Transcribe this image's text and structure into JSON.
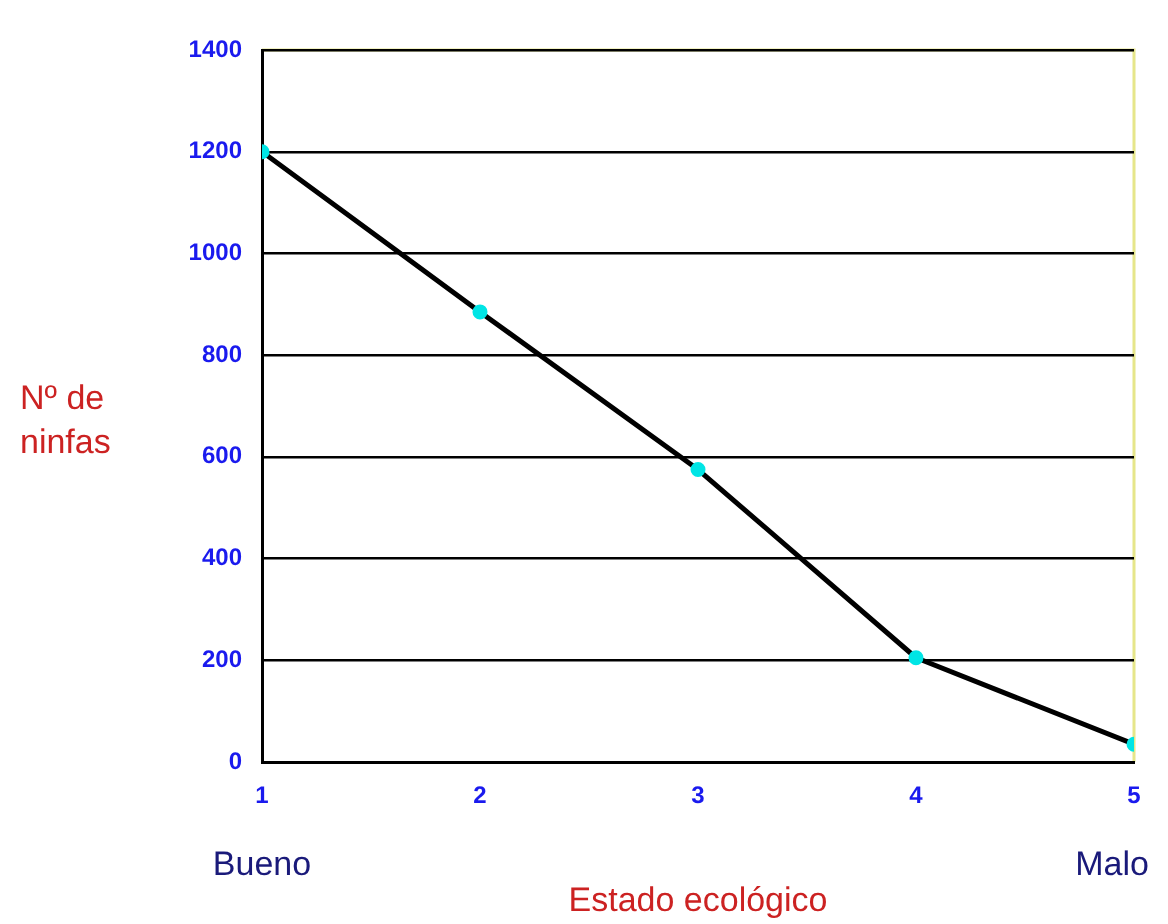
{
  "chart_data": {
    "type": "line",
    "xlabel": "Estado ecológico",
    "ylabel": "Nº de ninfas",
    "x": [
      1,
      2,
      3,
      4,
      5
    ],
    "series": [
      {
        "color": "#000000",
        "colors": [
          "#00e5e5",
          "#00e5e5",
          "#00e5e5",
          "#00e5e5",
          "#00e5e5"
        ],
        "values": [
          1200,
          885,
          575,
          205,
          35
        ]
      }
    ],
    "xlim": [
      1,
      5
    ],
    "xticks": [
      1,
      2,
      3,
      4,
      5
    ],
    "ylim": [
      0,
      1400
    ],
    "yticks": [
      0,
      200,
      400,
      600,
      800,
      1000,
      1200,
      1400
    ],
    "grid": "y",
    "legend": false,
    "marker": "circle",
    "line_style": "solid",
    "annotations": [
      "Bueno",
      "Malo"
    ]
  }
}
